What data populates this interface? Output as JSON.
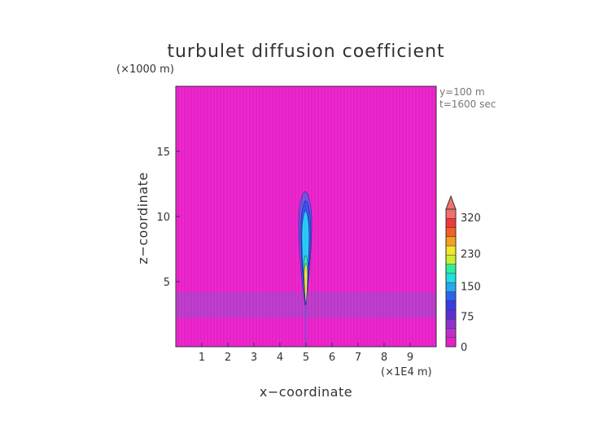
{
  "chart_data": {
    "type": "heatmap",
    "title": "turbulet diffusion coefficient",
    "xlabel": "x−coordinate",
    "ylabel": "z−coordinate",
    "x_unit": "(×1E4 m)",
    "y_unit": "(×1000 m)",
    "xlim": [
      0,
      10
    ],
    "ylim": [
      0,
      20
    ],
    "x_ticks": [
      1,
      2,
      3,
      4,
      5,
      6,
      7,
      8,
      9
    ],
    "y_ticks": [
      5,
      10,
      15
    ],
    "annotations": [
      "y=100 m",
      "t=1600 sec"
    ],
    "background_color": "#e81fc8",
    "layer": {
      "z_range": [
        2.2,
        4.2
      ],
      "color": "#b23cc8"
    },
    "plume": [
      {
        "x_range": [
          4.72,
          5.22
        ],
        "z_range": [
          3.2,
          11.9
        ],
        "color": "#6b52e0"
      },
      {
        "x_range": [
          4.8,
          5.18
        ],
        "z_range": [
          3.3,
          11.2
        ],
        "color": "#3a4bea"
      },
      {
        "x_range": [
          4.84,
          5.12
        ],
        "z_range": [
          3.5,
          10.4
        ],
        "color": "#24c8f0"
      },
      {
        "x_range": [
          4.9,
          5.08
        ],
        "z_range": [
          3.2,
          7.0
        ],
        "color": "#2bf0a0"
      },
      {
        "x_range": [
          4.93,
          5.06
        ],
        "z_range": [
          3.2,
          6.4
        ],
        "color": "#f4e628"
      }
    ],
    "colorbar": {
      "labels": [
        "0",
        "75",
        "150",
        "230",
        "320"
      ],
      "label_values": [
        0,
        75,
        150,
        230,
        320
      ],
      "vmin": 0,
      "vmax": 340,
      "extend": "max",
      "colors": [
        "#e81fc8",
        "#c02ec8",
        "#9030d0",
        "#5a2fd8",
        "#3a3ae8",
        "#2b63f0",
        "#25a9f0",
        "#22e0e0",
        "#2bf0a0",
        "#c8f030",
        "#f4e628",
        "#f4a020",
        "#f06028",
        "#f03838",
        "#f07070"
      ]
    }
  }
}
